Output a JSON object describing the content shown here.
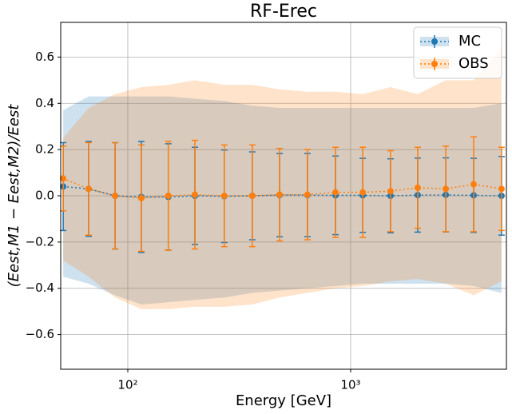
{
  "chart_data": {
    "type": "errorbar",
    "title": "RF-Erec",
    "x_label": "Energy [GeV]",
    "y_label": "(Eest,M1 − Eest,M2)/Eest",
    "x_scale": "log",
    "grid": true,
    "legend": "upper right",
    "xlim": [
      50,
      5000
    ],
    "ylim": [
      -0.75,
      0.75
    ],
    "xticks": [
      {
        "value": 100,
        "label": "10²"
      },
      {
        "value": 1000,
        "label": "10³"
      }
    ],
    "yticks": [
      {
        "value": -0.6,
        "label": "−0.6"
      },
      {
        "value": -0.4,
        "label": "−0.4"
      },
      {
        "value": -0.2,
        "label": "−0.2"
      },
      {
        "value": 0,
        "label": "0.0"
      },
      0.2,
      0.4,
      0.6
    ],
    "x": [
      51.3,
      66.7,
      87.7,
      115,
      152,
      200,
      271,
      362,
      480,
      640,
      855,
      1133,
      1510,
      2000,
      2673,
      3565,
      4755
    ],
    "series": [
      {
        "name": "MC",
        "color": "#1f77b4",
        "values": [
          0.04,
          0.03,
          0.0,
          -0.005,
          -0.005,
          0.0,
          -0.002,
          0.0,
          0.003,
          0.003,
          0.002,
          0.002,
          0.0,
          0.003,
          0.004,
          0.002,
          0.0
        ],
        "errors": [
          0.19,
          0.205,
          0.23,
          0.24,
          0.23,
          0.21,
          0.2,
          0.19,
          0.18,
          0.18,
          0.17,
          0.16,
          0.16,
          0.16,
          0.16,
          0.16,
          0.17
        ],
        "band_upper": [
          0.37,
          0.43,
          0.43,
          0.43,
          0.43,
          0.42,
          0.41,
          0.39,
          0.38,
          0.38,
          0.38,
          0.38,
          0.38,
          0.38,
          0.38,
          0.38,
          0.4
        ],
        "band_lower": [
          -0.35,
          -0.38,
          -0.43,
          -0.47,
          -0.46,
          -0.45,
          -0.44,
          -0.42,
          -0.41,
          -0.4,
          -0.39,
          -0.38,
          -0.38,
          -0.38,
          -0.38,
          -0.39,
          -0.42
        ]
      },
      {
        "name": "OBS",
        "color": "#ff7f0e",
        "values": [
          0.075,
          0.03,
          0.0,
          -0.01,
          0.0,
          0.005,
          0.0,
          0.0,
          0.005,
          0.005,
          0.015,
          0.015,
          0.02,
          0.035,
          0.03,
          0.05,
          0.03
        ],
        "errors": [
          0.14,
          0.2,
          0.23,
          0.23,
          0.235,
          0.235,
          0.22,
          0.22,
          0.2,
          0.195,
          0.195,
          0.195,
          0.175,
          0.175,
          0.185,
          0.205,
          0.18
        ],
        "band_upper": [
          0.25,
          0.38,
          0.44,
          0.47,
          0.48,
          0.5,
          0.48,
          0.48,
          0.46,
          0.45,
          0.45,
          0.44,
          0.47,
          0.44,
          0.5,
          0.5,
          0.64
        ],
        "band_lower": [
          -0.28,
          -0.35,
          -0.44,
          -0.49,
          -0.49,
          -0.48,
          -0.48,
          -0.47,
          -0.44,
          -0.42,
          -0.4,
          -0.39,
          -0.37,
          -0.36,
          -0.38,
          -0.43,
          -0.37
        ]
      }
    ]
  }
}
